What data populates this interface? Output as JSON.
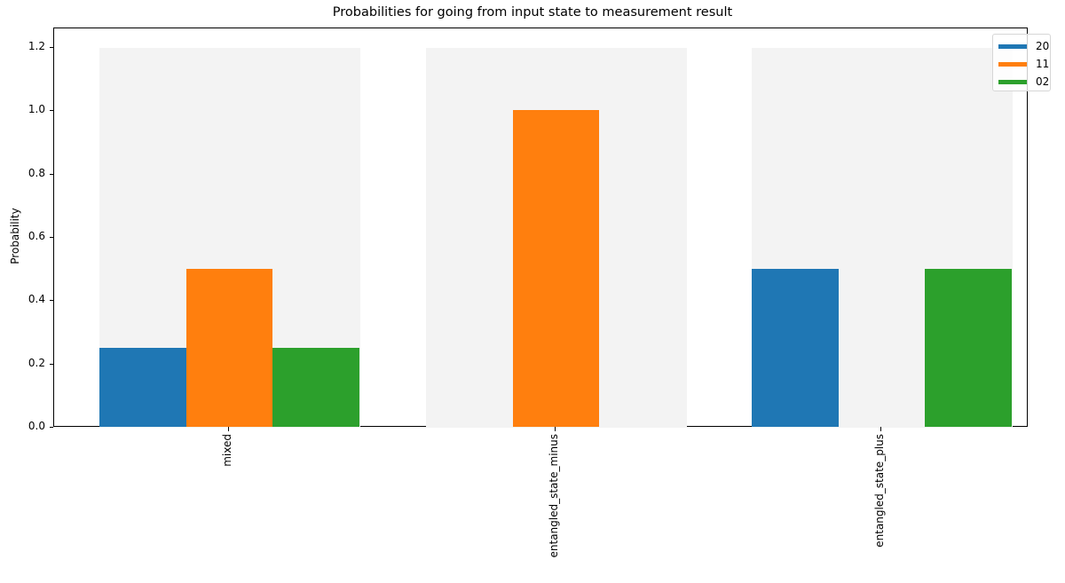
{
  "chart_data": {
    "type": "bar",
    "title": "Probabilities for going from input state to measurement result",
    "xlabel": "",
    "ylabel": "Probability",
    "ylim": [
      0,
      1.26
    ],
    "grid": false,
    "legend_position": "upper right",
    "categories": [
      "mixed",
      "entangled_state_minus",
      "entangled_state_plus"
    ],
    "series": [
      {
        "name": "20",
        "color": "#1f77b4",
        "values": [
          0.25,
          0.0,
          0.5
        ]
      },
      {
        "name": "11",
        "color": "#ff7f0e",
        "values": [
          0.5,
          1.0,
          0.0
        ]
      },
      {
        "name": "02",
        "color": "#2ca02c",
        "values": [
          0.25,
          0.0,
          0.5
        ]
      }
    ],
    "background_band_height": 1.2,
    "yticks": [
      "0.0",
      "0.2",
      "0.4",
      "0.6",
      "0.8",
      "1.0",
      "1.2"
    ],
    "ytick_values": [
      0,
      0.2,
      0.4,
      0.6,
      0.8,
      1.0,
      1.2
    ]
  },
  "colors": {
    "background_band": "#f3f3f3",
    "axes": "#000000"
  }
}
